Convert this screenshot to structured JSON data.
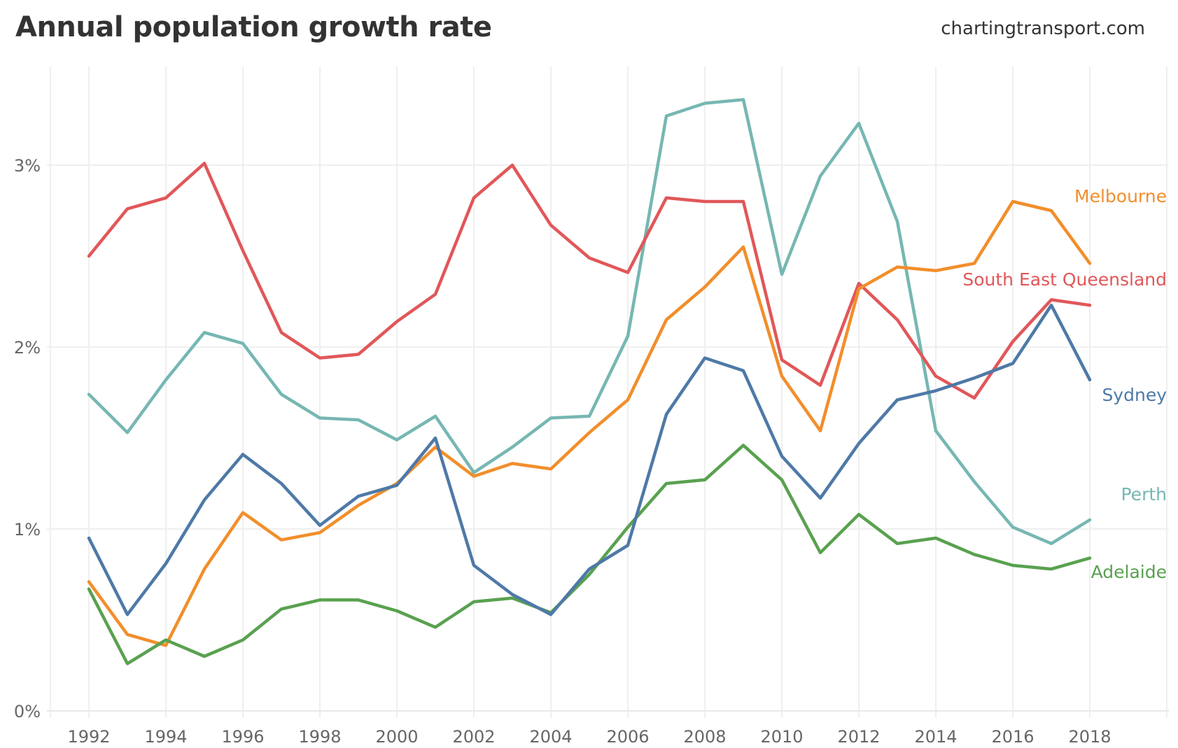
{
  "chart_data": {
    "type": "line",
    "title": "Annual population growth rate",
    "source": "chartingtransport.com",
    "xlabel": "",
    "ylabel": "",
    "x": [
      1992,
      1993,
      1994,
      1995,
      1996,
      1997,
      1998,
      1999,
      2000,
      2001,
      2002,
      2003,
      2004,
      2005,
      2006,
      2007,
      2008,
      2009,
      2010,
      2011,
      2012,
      2013,
      2014,
      2015,
      2016,
      2017,
      2018
    ],
    "xticks": [
      "1992",
      "1994",
      "1996",
      "1998",
      "2000",
      "2002",
      "2004",
      "2006",
      "2008",
      "2010",
      "2012",
      "2014",
      "2016",
      "2018"
    ],
    "yticks": [
      "0%",
      "1%",
      "2%",
      "3%"
    ],
    "ylim": [
      0,
      3.5
    ],
    "xlim": [
      1991,
      2020
    ],
    "grid": true,
    "legend": "direct labels at line ends",
    "series": [
      {
        "name": "Melbourne",
        "color": "#f28e2b",
        "values": [
          0.71,
          0.42,
          0.36,
          0.78,
          1.09,
          0.94,
          0.98,
          1.13,
          1.25,
          1.45,
          1.29,
          1.36,
          1.33,
          1.53,
          1.71,
          2.15,
          2.33,
          2.55,
          1.84,
          1.54,
          2.32,
          2.44,
          2.42,
          2.46,
          2.8,
          2.75,
          2.46
        ]
      },
      {
        "name": "South East Queensland",
        "color": "#e15759",
        "values": [
          2.5,
          2.76,
          2.82,
          3.01,
          2.53,
          2.08,
          1.94,
          1.96,
          2.14,
          2.29,
          2.82,
          3.0,
          2.67,
          2.49,
          2.41,
          2.82,
          2.8,
          2.8,
          1.93,
          1.79,
          2.35,
          2.15,
          1.84,
          1.72,
          2.03,
          2.26,
          2.23
        ]
      },
      {
        "name": "Sydney",
        "color": "#4e79a7",
        "values": [
          0.95,
          0.53,
          0.81,
          1.16,
          1.41,
          1.25,
          1.02,
          1.18,
          1.24,
          1.5,
          0.8,
          0.64,
          0.53,
          0.78,
          0.91,
          1.63,
          1.94,
          1.87,
          1.4,
          1.17,
          1.47,
          1.71,
          1.76,
          1.83,
          1.91,
          2.23,
          1.82
        ]
      },
      {
        "name": "Perth",
        "color": "#76b7b2",
        "values": [
          1.74,
          1.53,
          1.82,
          2.08,
          2.02,
          1.74,
          1.61,
          1.6,
          1.49,
          1.62,
          1.31,
          1.45,
          1.61,
          1.62,
          2.06,
          3.27,
          3.34,
          3.36,
          2.4,
          2.94,
          3.23,
          2.69,
          1.54,
          1.26,
          1.01,
          0.92,
          1.05
        ]
      },
      {
        "name": "Adelaide",
        "color": "#59a14f",
        "values": [
          0.67,
          0.26,
          0.39,
          0.3,
          0.39,
          0.56,
          0.61,
          0.61,
          0.55,
          0.46,
          0.6,
          0.62,
          0.54,
          0.75,
          1.01,
          1.25,
          1.27,
          1.46,
          1.27,
          0.87,
          1.08,
          0.92,
          0.95,
          0.86,
          0.8,
          0.78,
          0.84
        ]
      }
    ]
  }
}
